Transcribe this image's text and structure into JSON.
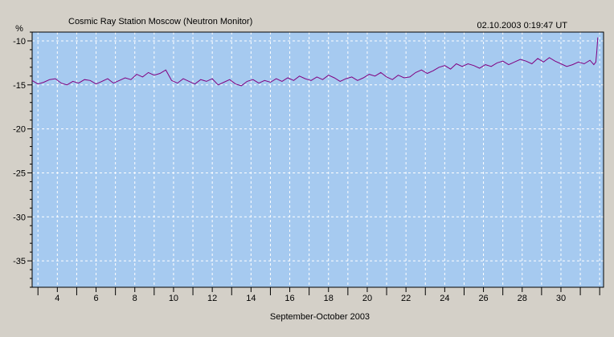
{
  "title": "Cosmic Ray Station Moscow (Neutron Monitor)",
  "timestamp": "02.10.2003 0:19:47 UT",
  "colors": {
    "background": "#d4d0c8",
    "plot_area": "#a6caf0",
    "grid": "#ffffff",
    "line": "#800080"
  },
  "chart_data": {
    "type": "line",
    "title": "Cosmic Ray Station Moscow (Neutron Monitor)",
    "xlabel": "September-October 2003",
    "ylabel": "%",
    "xlim": [
      2.7,
      32.2
    ],
    "ylim": [
      -38,
      -9
    ],
    "x_major_ticks": [
      4,
      6,
      8,
      10,
      12,
      14,
      16,
      18,
      20,
      22,
      24,
      26,
      28,
      30
    ],
    "x_tick_labels": [
      "4",
      "6",
      "8",
      "10",
      "12",
      "14",
      "16",
      "18",
      "20",
      "22",
      "24",
      "26",
      "28",
      "30"
    ],
    "y_major_ticks": [
      -10,
      -15,
      -20,
      -25,
      -30,
      -35
    ],
    "y_tick_labels": [
      "-10",
      "-15",
      "-20",
      "-25",
      "-30",
      "-35"
    ],
    "grid": true,
    "series": [
      {
        "x": [
          2.7,
          3.0,
          3.3,
          3.6,
          3.9,
          4.2,
          4.5,
          4.8,
          5.1,
          5.4,
          5.7,
          6.0,
          6.3,
          6.6,
          6.9,
          7.2,
          7.5,
          7.8,
          8.1,
          8.4,
          8.7,
          9.0,
          9.3,
          9.6,
          9.9,
          10.2,
          10.5,
          10.8,
          11.1,
          11.4,
          11.7,
          12.0,
          12.3,
          12.6,
          12.9,
          13.2,
          13.5,
          13.8,
          14.1,
          14.4,
          14.7,
          15.0,
          15.3,
          15.6,
          15.9,
          16.2,
          16.5,
          16.8,
          17.1,
          17.4,
          17.7,
          18.0,
          18.3,
          18.6,
          18.9,
          19.2,
          19.5,
          19.8,
          20.1,
          20.4,
          20.7,
          21.0,
          21.3,
          21.6,
          21.9,
          22.2,
          22.5,
          22.8,
          23.1,
          23.4,
          23.7,
          24.0,
          24.3,
          24.6,
          24.9,
          25.2,
          25.5,
          25.8,
          26.1,
          26.4,
          26.7,
          27.0,
          27.3,
          27.6,
          27.9,
          28.2,
          28.5,
          28.8,
          29.1,
          29.4,
          29.7,
          30.0,
          30.3,
          30.6,
          30.9,
          31.2,
          31.5,
          31.7,
          31.8,
          31.85,
          31.9
        ],
        "y": [
          -14.5,
          -14.9,
          -14.7,
          -14.4,
          -14.3,
          -14.8,
          -15.0,
          -14.6,
          -14.8,
          -14.4,
          -14.5,
          -14.9,
          -14.6,
          -14.3,
          -14.8,
          -14.5,
          -14.2,
          -14.4,
          -13.8,
          -14.1,
          -13.6,
          -13.9,
          -13.7,
          -13.3,
          -14.5,
          -14.8,
          -14.3,
          -14.6,
          -14.9,
          -14.4,
          -14.6,
          -14.3,
          -15.0,
          -14.7,
          -14.4,
          -14.9,
          -15.1,
          -14.6,
          -14.4,
          -14.8,
          -14.5,
          -14.7,
          -14.3,
          -14.6,
          -14.2,
          -14.5,
          -14.0,
          -14.3,
          -14.5,
          -14.1,
          -14.4,
          -13.9,
          -14.2,
          -14.6,
          -14.3,
          -14.1,
          -14.5,
          -14.2,
          -13.8,
          -14.0,
          -13.6,
          -14.1,
          -14.4,
          -13.9,
          -14.2,
          -14.1,
          -13.6,
          -13.3,
          -13.7,
          -13.4,
          -13.0,
          -12.8,
          -13.2,
          -12.6,
          -12.9,
          -12.6,
          -12.8,
          -13.1,
          -12.7,
          -12.9,
          -12.5,
          -12.3,
          -12.7,
          -12.4,
          -12.1,
          -12.3,
          -12.6,
          -12.0,
          -12.4,
          -11.9,
          -12.3,
          -12.6,
          -12.9,
          -12.7,
          -12.4,
          -12.6,
          -12.2,
          -12.7,
          -12.4,
          -11.2,
          -9.6
        ]
      }
    ]
  }
}
